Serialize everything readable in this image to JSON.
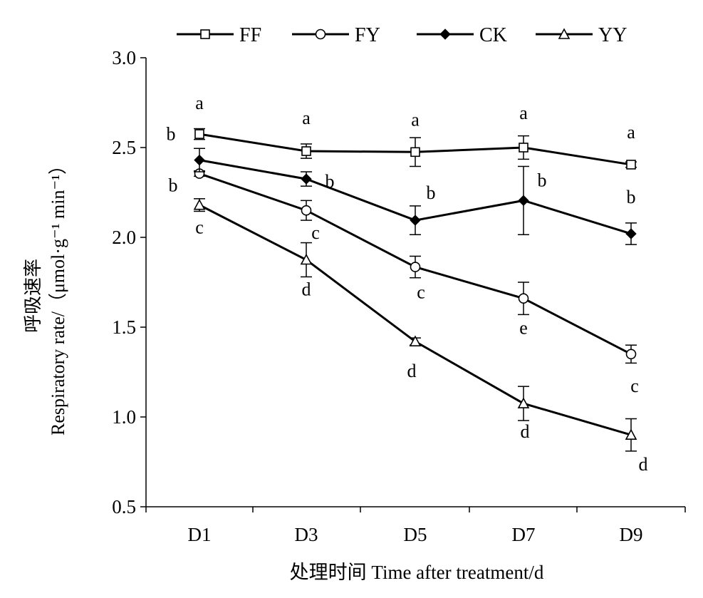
{
  "chart_data": {
    "type": "line",
    "categories": [
      "D1",
      "D3",
      "D5",
      "D7",
      "D9"
    ],
    "xlabel": "处理时间 Time after treatment/d",
    "ylabel_cn": "呼吸速率",
    "ylabel": "Respiratory rate/（μmol·g⁻¹ min⁻¹）",
    "ylim": [
      0.5,
      3.0
    ],
    "yticks": [
      "0.5",
      "1.0",
      "1.5",
      "2.0",
      "2.5",
      "3.0"
    ],
    "grid": false,
    "legend_position": "top",
    "series": [
      {
        "name": "FF",
        "marker": "square-open",
        "values": [
          2.575,
          2.48,
          2.475,
          2.5,
          2.405
        ],
        "errors": [
          0.03,
          0.04,
          0.08,
          0.065,
          0.015
        ],
        "letters": [
          "a",
          "a",
          "a",
          "a",
          "a"
        ]
      },
      {
        "name": "FY",
        "marker": "circle-open",
        "values": [
          2.355,
          2.15,
          1.835,
          1.66,
          1.35
        ],
        "errors": [
          0.015,
          0.055,
          0.06,
          0.09,
          0.05
        ],
        "letters": [
          "b",
          "c",
          "c",
          "e",
          "c"
        ]
      },
      {
        "name": "CK",
        "marker": "diamond-filled",
        "values": [
          2.43,
          2.325,
          2.095,
          2.205,
          2.02
        ],
        "errors": [
          0.065,
          0.04,
          0.08,
          0.19,
          0.06
        ],
        "letters": [
          "b",
          "b",
          "b",
          "b",
          "b"
        ]
      },
      {
        "name": "YY",
        "marker": "triangle-open",
        "values": [
          2.18,
          1.875,
          1.42,
          1.075,
          0.9
        ],
        "errors": [
          0.035,
          0.095,
          0.02,
          0.095,
          0.09
        ],
        "letters": [
          "c",
          "d",
          "d",
          "d",
          "d"
        ]
      }
    ]
  }
}
